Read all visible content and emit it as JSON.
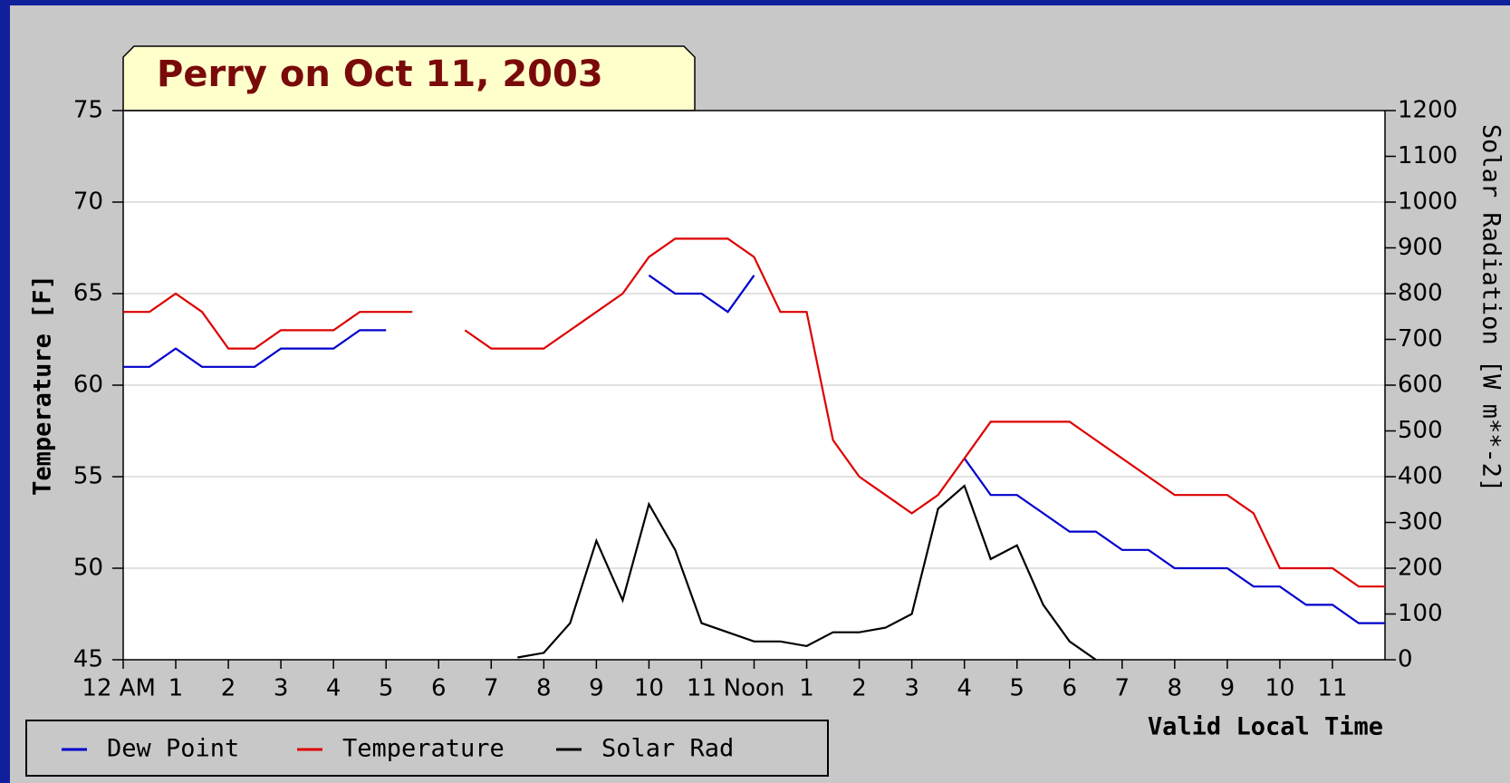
{
  "chart_data": {
    "type": "line",
    "title": "Perry on Oct 11, 2003",
    "xlabel": "Valid Local Time",
    "ylabel": "Temperature [F]",
    "y2label": "Solar Radiation [W m**-2]",
    "xlim": [
      0,
      24
    ],
    "xticks": [
      {
        "value": 0,
        "label": "12 AM"
      },
      1,
      2,
      3,
      4,
      5,
      6,
      7,
      8,
      9,
      10,
      11,
      {
        "value": 12,
        "label": "Noon"
      },
      {
        "value": 13,
        "label": "1"
      },
      {
        "value": 14,
        "label": "2"
      },
      {
        "value": 15,
        "label": "3"
      },
      {
        "value": 16,
        "label": "4"
      },
      {
        "value": 17,
        "label": "5"
      },
      {
        "value": 18,
        "label": "6"
      },
      {
        "value": 19,
        "label": "7"
      },
      {
        "value": 20,
        "label": "8"
      },
      {
        "value": 21,
        "label": "9"
      },
      {
        "value": 22,
        "label": "10"
      },
      {
        "value": 23,
        "label": "11"
      }
    ],
    "ylim": [
      45,
      75
    ],
    "yticks": [
      45,
      50,
      55,
      60,
      65,
      70,
      75
    ],
    "y2lim": [
      0,
      1200
    ],
    "y2ticks": [
      0,
      100,
      200,
      300,
      400,
      500,
      600,
      700,
      800,
      900,
      1000,
      1100,
      1200
    ],
    "grid": true,
    "x": [
      0,
      0.5,
      1,
      1.5,
      2,
      2.5,
      3,
      3.5,
      4,
      4.5,
      5,
      5.5,
      6,
      6.5,
      7,
      7.5,
      8,
      8.5,
      9,
      9.5,
      10,
      10.5,
      11,
      11.5,
      12,
      12.5,
      13,
      13.5,
      14,
      14.5,
      15,
      15.5,
      16,
      16.5,
      17,
      17.5,
      18,
      18.5,
      19,
      19.5,
      20,
      20.5,
      21,
      21.5,
      22,
      22.5,
      23,
      23.5,
      24
    ],
    "series": [
      {
        "name": "Dew Point",
        "color": "#0000cc",
        "values": [
          61,
          61,
          62,
          61,
          61,
          61,
          62,
          62,
          62,
          63,
          63,
          null,
          null,
          null,
          null,
          null,
          null,
          null,
          null,
          null,
          66,
          65,
          65,
          64,
          66,
          null,
          null,
          null,
          null,
          null,
          null,
          null,
          56,
          54,
          54,
          53,
          52,
          52,
          51,
          51,
          50,
          50,
          50,
          49,
          49,
          48,
          48,
          47,
          47
        ]
      },
      {
        "name": "Temperature",
        "color": "#dd0000",
        "values": [
          64,
          64,
          65,
          64,
          62,
          62,
          63,
          63,
          63,
          64,
          64,
          64,
          null,
          63,
          62,
          62,
          62,
          63,
          64,
          65,
          67,
          68,
          68,
          68,
          67,
          64,
          64,
          57,
          55,
          54,
          53,
          54,
          56,
          58,
          58,
          58,
          58,
          57,
          56,
          55,
          54,
          54,
          54,
          53,
          50,
          50,
          50,
          49,
          49
        ]
      },
      {
        "name": "Solar Rad",
        "color": "#000000",
        "axis": "y2",
        "values": [
          null,
          null,
          null,
          null,
          null,
          null,
          null,
          null,
          null,
          null,
          null,
          null,
          null,
          null,
          null,
          5,
          15,
          80,
          260,
          130,
          340,
          240,
          80,
          60,
          40,
          40,
          30,
          60,
          60,
          70,
          100,
          330,
          380,
          220,
          250,
          120,
          40,
          0,
          null,
          null,
          null,
          null,
          null,
          null,
          null,
          null,
          null,
          null,
          null
        ]
      }
    ]
  }
}
